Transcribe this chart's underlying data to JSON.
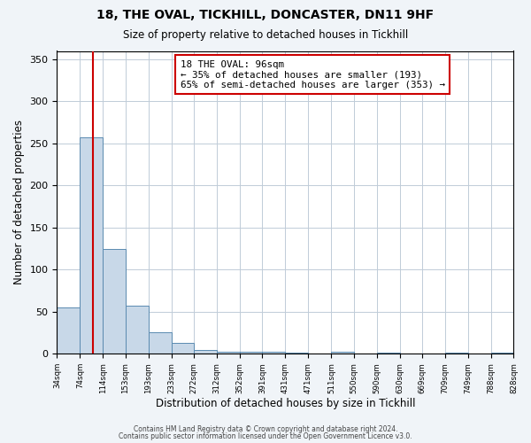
{
  "title_line1": "18, THE OVAL, TICKHILL, DONCASTER, DN11 9HF",
  "title_line2": "Size of property relative to detached houses in Tickhill",
  "xlabel": "Distribution of detached houses by size in Tickhill",
  "ylabel": "Number of detached properties",
  "bar_edges": [
    34,
    74,
    114,
    153,
    193,
    233,
    272,
    312,
    352,
    391,
    431,
    471,
    511,
    550,
    590,
    630,
    669,
    709,
    749,
    788,
    828
  ],
  "bar_heights": [
    55,
    257,
    125,
    57,
    26,
    13,
    5,
    2,
    2,
    2,
    1,
    0,
    2,
    0,
    1,
    0,
    0,
    1,
    0,
    1
  ],
  "bar_color": "#c8d8e8",
  "bar_edge_color": "#5a8ab0",
  "vline_x": 96,
  "vline_color": "#cc0000",
  "annotation_text_line1": "18 THE OVAL: 96sqm",
  "annotation_text_line2": "← 35% of detached houses are smaller (193)",
  "annotation_text_line3": "65% of semi-detached houses are larger (353) →",
  "annotation_box_color": "#cc0000",
  "ylim": [
    0,
    360
  ],
  "yticks": [
    0,
    50,
    100,
    150,
    200,
    250,
    300,
    350
  ],
  "tick_labels": [
    "34sqm",
    "74sqm",
    "114sqm",
    "153sqm",
    "193sqm",
    "233sqm",
    "272sqm",
    "312sqm",
    "352sqm",
    "391sqm",
    "431sqm",
    "471sqm",
    "511sqm",
    "550sqm",
    "590sqm",
    "630sqm",
    "669sqm",
    "709sqm",
    "749sqm",
    "788sqm",
    "828sqm"
  ],
  "footer_line1": "Contains HM Land Registry data © Crown copyright and database right 2024.",
  "footer_line2": "Contains public sector information licensed under the Open Government Licence v3.0.",
  "background_color": "#f0f4f8",
  "plot_bg_color": "#ffffff",
  "grid_color": "#c0ccd8"
}
